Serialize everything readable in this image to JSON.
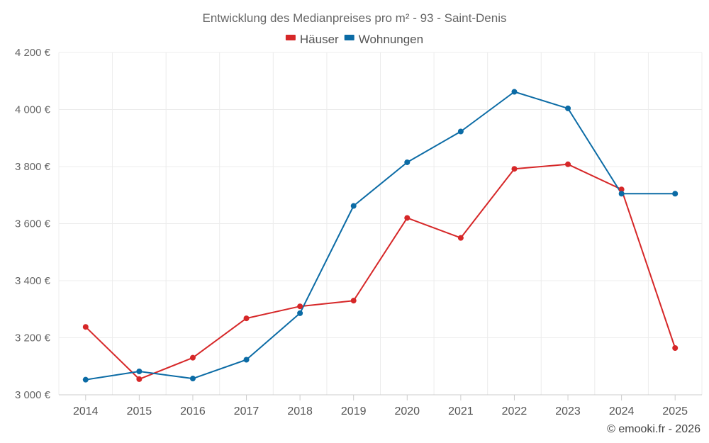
{
  "chart_data": {
    "type": "line",
    "title": "Entwicklung des Medianpreises pro m² - 93 - Saint-Denis",
    "categories": [
      "2014",
      "2015",
      "2016",
      "2017",
      "2018",
      "2019",
      "2020",
      "2021",
      "2022",
      "2023",
      "2024",
      "2025"
    ],
    "series": [
      {
        "name": "Häuser",
        "color": "#d62728",
        "values": [
          3238,
          3055,
          3130,
          3268,
          3310,
          3330,
          3620,
          3550,
          3792,
          3808,
          3720,
          3164
        ]
      },
      {
        "name": "Wohnungen",
        "color": "#0b6ba5",
        "values": [
          3053,
          3082,
          3057,
          3123,
          3286,
          3662,
          3815,
          3923,
          4062,
          4004,
          3705,
          3705
        ]
      }
    ],
    "ylim": [
      3000,
      4200
    ],
    "yticks": [
      3000,
      3200,
      3400,
      3600,
      3800,
      4000,
      4200
    ],
    "ytick_labels": [
      "3 000 €",
      "3 200 €",
      "3 400 €",
      "3 600 €",
      "3 800 €",
      "4 000 €",
      "4 200 €"
    ],
    "xlabel": "",
    "ylabel": "",
    "grid": true,
    "legend_position": "top-center"
  },
  "credit": "© emooki.fr - 2026"
}
